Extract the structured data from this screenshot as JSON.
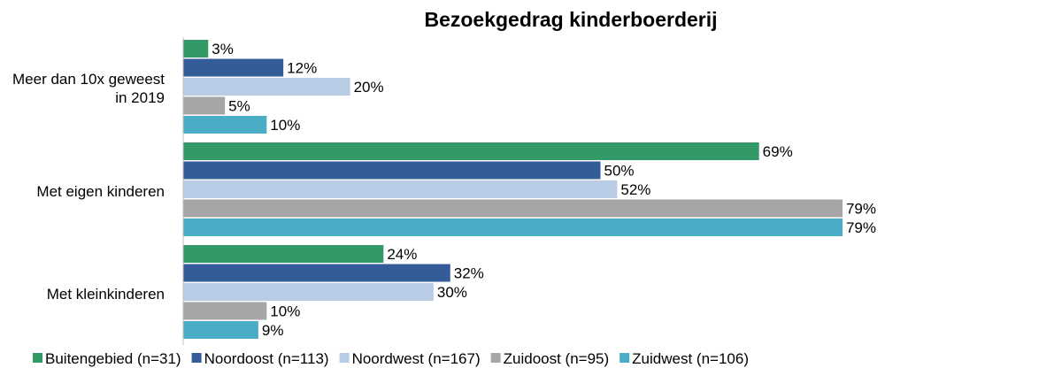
{
  "chart_data": {
    "type": "bar",
    "orientation": "horizontal",
    "title": "Bezoekgedrag kinderboerderij",
    "categories": [
      "Meer dan 10x geweest in 2019",
      "Met eigen kinderen",
      "Met kleinkinderen"
    ],
    "xlim": [
      0,
      100
    ],
    "series": [
      {
        "name": "Buitengebied (n=31)",
        "color": "#339966",
        "values": [
          3,
          69,
          24
        ],
        "value_labels": [
          "3%",
          "69%",
          "24%"
        ]
      },
      {
        "name": "Noordoost (n=113)",
        "color": "#335c99",
        "values": [
          12,
          50,
          32
        ],
        "value_labels": [
          "12%",
          "50%",
          "32%"
        ]
      },
      {
        "name": "Noordwest (n=167)",
        "color": "#b9cce6",
        "values": [
          20,
          52,
          30
        ],
        "value_labels": [
          "20%",
          "52%",
          "30%"
        ]
      },
      {
        "name": "Zuidoost (n=95)",
        "color": "#a6a6a6",
        "values": [
          5,
          79,
          10
        ],
        "value_labels": [
          "5%",
          "79%",
          "10%"
        ]
      },
      {
        "name": "Zuidwest (n=106)",
        "color": "#4bacc6",
        "values": [
          10,
          79,
          9
        ],
        "value_labels": [
          "10%",
          "79%",
          "9%"
        ]
      }
    ],
    "legend": "bottom"
  }
}
